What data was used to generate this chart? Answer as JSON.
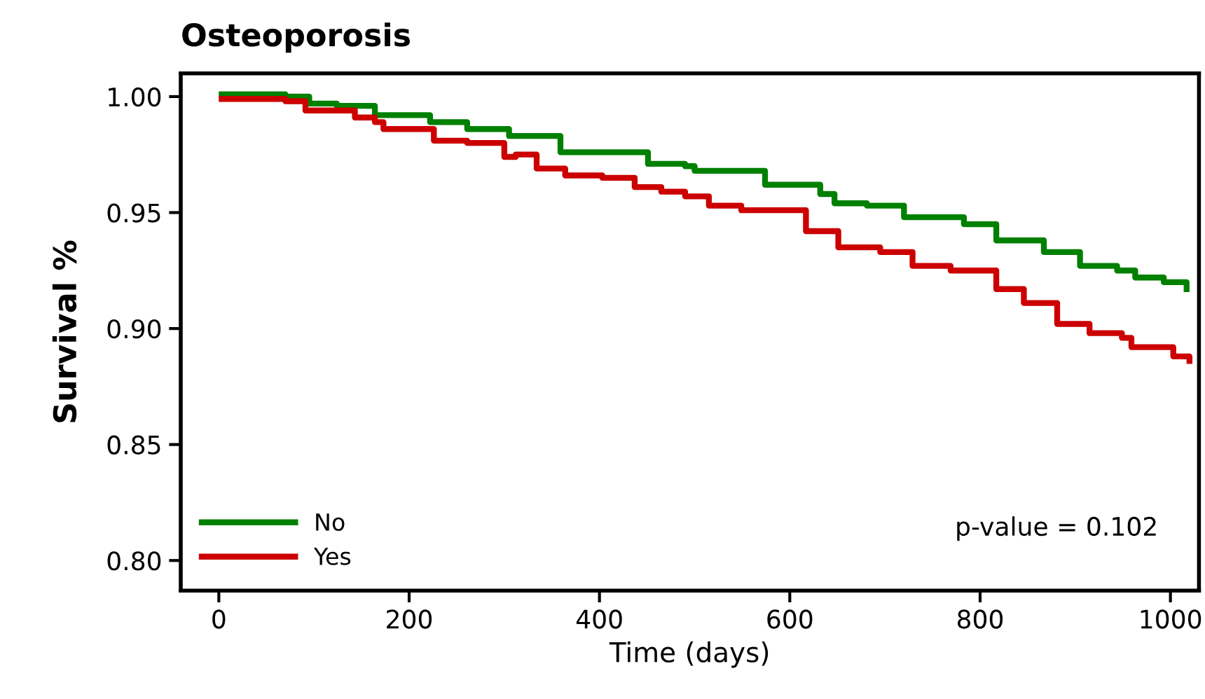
{
  "chart_data": {
    "type": "step",
    "title": "Osteoporosis",
    "xlabel": "Time (days)",
    "ylabel": "Survival %",
    "xlim": [
      -40,
      1030
    ],
    "ylim": [
      0.787,
      1.01
    ],
    "xticks": [
      0,
      200,
      400,
      600,
      800,
      1000
    ],
    "yticks": [
      {
        "value": 0.8,
        "label": "0.80"
      },
      {
        "value": 0.85,
        "label": "0.85"
      },
      {
        "value": 0.9,
        "label": "0.90"
      },
      {
        "value": 0.95,
        "label": "0.95"
      },
      {
        "value": 1.0,
        "label": "1.00"
      }
    ],
    "grid": false,
    "legend": "bottom left",
    "annotations": [
      "p-value = 0.102"
    ],
    "series": [
      {
        "name": "No",
        "color": "#008000",
        "x": [
          3,
          70,
          95,
          124,
          164,
          208,
          222,
          261,
          305,
          359,
          398,
          451,
          490,
          500,
          574,
          632,
          647,
          681,
          720,
          783,
          817,
          867,
          905,
          944,
          963,
          993,
          1017
        ],
        "values": [
          1.001,
          1.0,
          0.997,
          0.996,
          0.992,
          0.992,
          0.989,
          0.986,
          0.983,
          0.976,
          0.976,
          0.971,
          0.97,
          0.968,
          0.962,
          0.958,
          0.954,
          0.953,
          0.948,
          0.945,
          0.938,
          0.933,
          0.927,
          0.925,
          0.922,
          0.92,
          0.917
        ]
      },
      {
        "name": "Yes",
        "color": "#cc0000",
        "x": [
          3,
          70,
          91,
          128,
          143,
          164,
          173,
          212,
          226,
          261,
          300,
          312,
          334,
          364,
          403,
          437,
          465,
          490,
          515,
          549,
          617,
          651,
          695,
          729,
          769,
          817,
          846,
          881,
          915,
          949,
          959,
          993,
          1003,
          1020
        ],
        "values": [
          0.999,
          0.998,
          0.994,
          0.994,
          0.991,
          0.989,
          0.986,
          0.986,
          0.981,
          0.98,
          0.974,
          0.975,
          0.969,
          0.966,
          0.965,
          0.961,
          0.959,
          0.957,
          0.953,
          0.951,
          0.942,
          0.935,
          0.933,
          0.927,
          0.925,
          0.917,
          0.911,
          0.902,
          0.898,
          0.896,
          0.892,
          0.892,
          0.888,
          0.886
        ]
      }
    ]
  }
}
